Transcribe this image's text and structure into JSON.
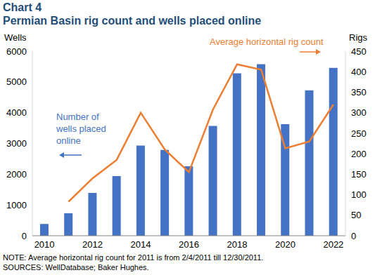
{
  "chart_data": {
    "type": "bar",
    "title": "Chart 4",
    "subtitle": "Permian Basin rig count and wells placed online",
    "y_label": "Wells",
    "y2_label": "Rigs",
    "note": "NOTE: Average horizontal rig count for 2011 is from 2/4/2011 till 12/30/2011.",
    "sources": "SOURCES: WellDatabase; Baker Hughes.",
    "categories": [
      "2010",
      null,
      "2012",
      null,
      "2014",
      null,
      "2016",
      null,
      "2018",
      null,
      "2020",
      null,
      "2022"
    ],
    "series": [
      {
        "name": "Number of wells placed online",
        "type": "bar",
        "color": "#4472C4",
        "values": [
          380,
          730,
          1390,
          1940,
          2930,
          2790,
          2260,
          3570,
          5280,
          5580,
          3630,
          4730,
          5460
        ]
      },
      {
        "name": "Average horizontal rig count",
        "type": "line",
        "color": "#ED7D31",
        "axis": "y2",
        "values": [
          null,
          83,
          140,
          185,
          300,
          210,
          155,
          308,
          418,
          405,
          213,
          230,
          320
        ]
      }
    ],
    "ylim": [
      0,
      6000
    ],
    "yticks": [
      0,
      1000,
      2000,
      3000,
      4000,
      5000,
      6000
    ],
    "y2lim": [
      0,
      450
    ],
    "y2ticks": [
      0,
      50,
      100,
      150,
      200,
      250,
      300,
      350,
      400,
      450
    ],
    "grid": false
  }
}
